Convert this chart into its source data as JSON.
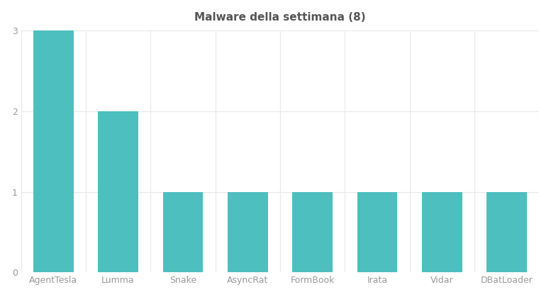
{
  "title": "Malware della settimana (8)",
  "categories": [
    "AgentTesla",
    "Lumma",
    "Snake",
    "AsyncRat",
    "FormBook",
    "Irata",
    "Vidar",
    "DBatLoader"
  ],
  "values": [
    3,
    2,
    1,
    1,
    1,
    1,
    1,
    1
  ],
  "bar_color": "#4DBFBF",
  "background_color": "#ffffff",
  "ylim": [
    0,
    3
  ],
  "yticks": [
    0,
    1,
    2,
    3
  ],
  "title_fontsize": 11,
  "tick_fontsize": 9,
  "grid_color": "#e8e8e8",
  "tick_color": "#999999",
  "title_color": "#555555",
  "bar_width": 0.62
}
